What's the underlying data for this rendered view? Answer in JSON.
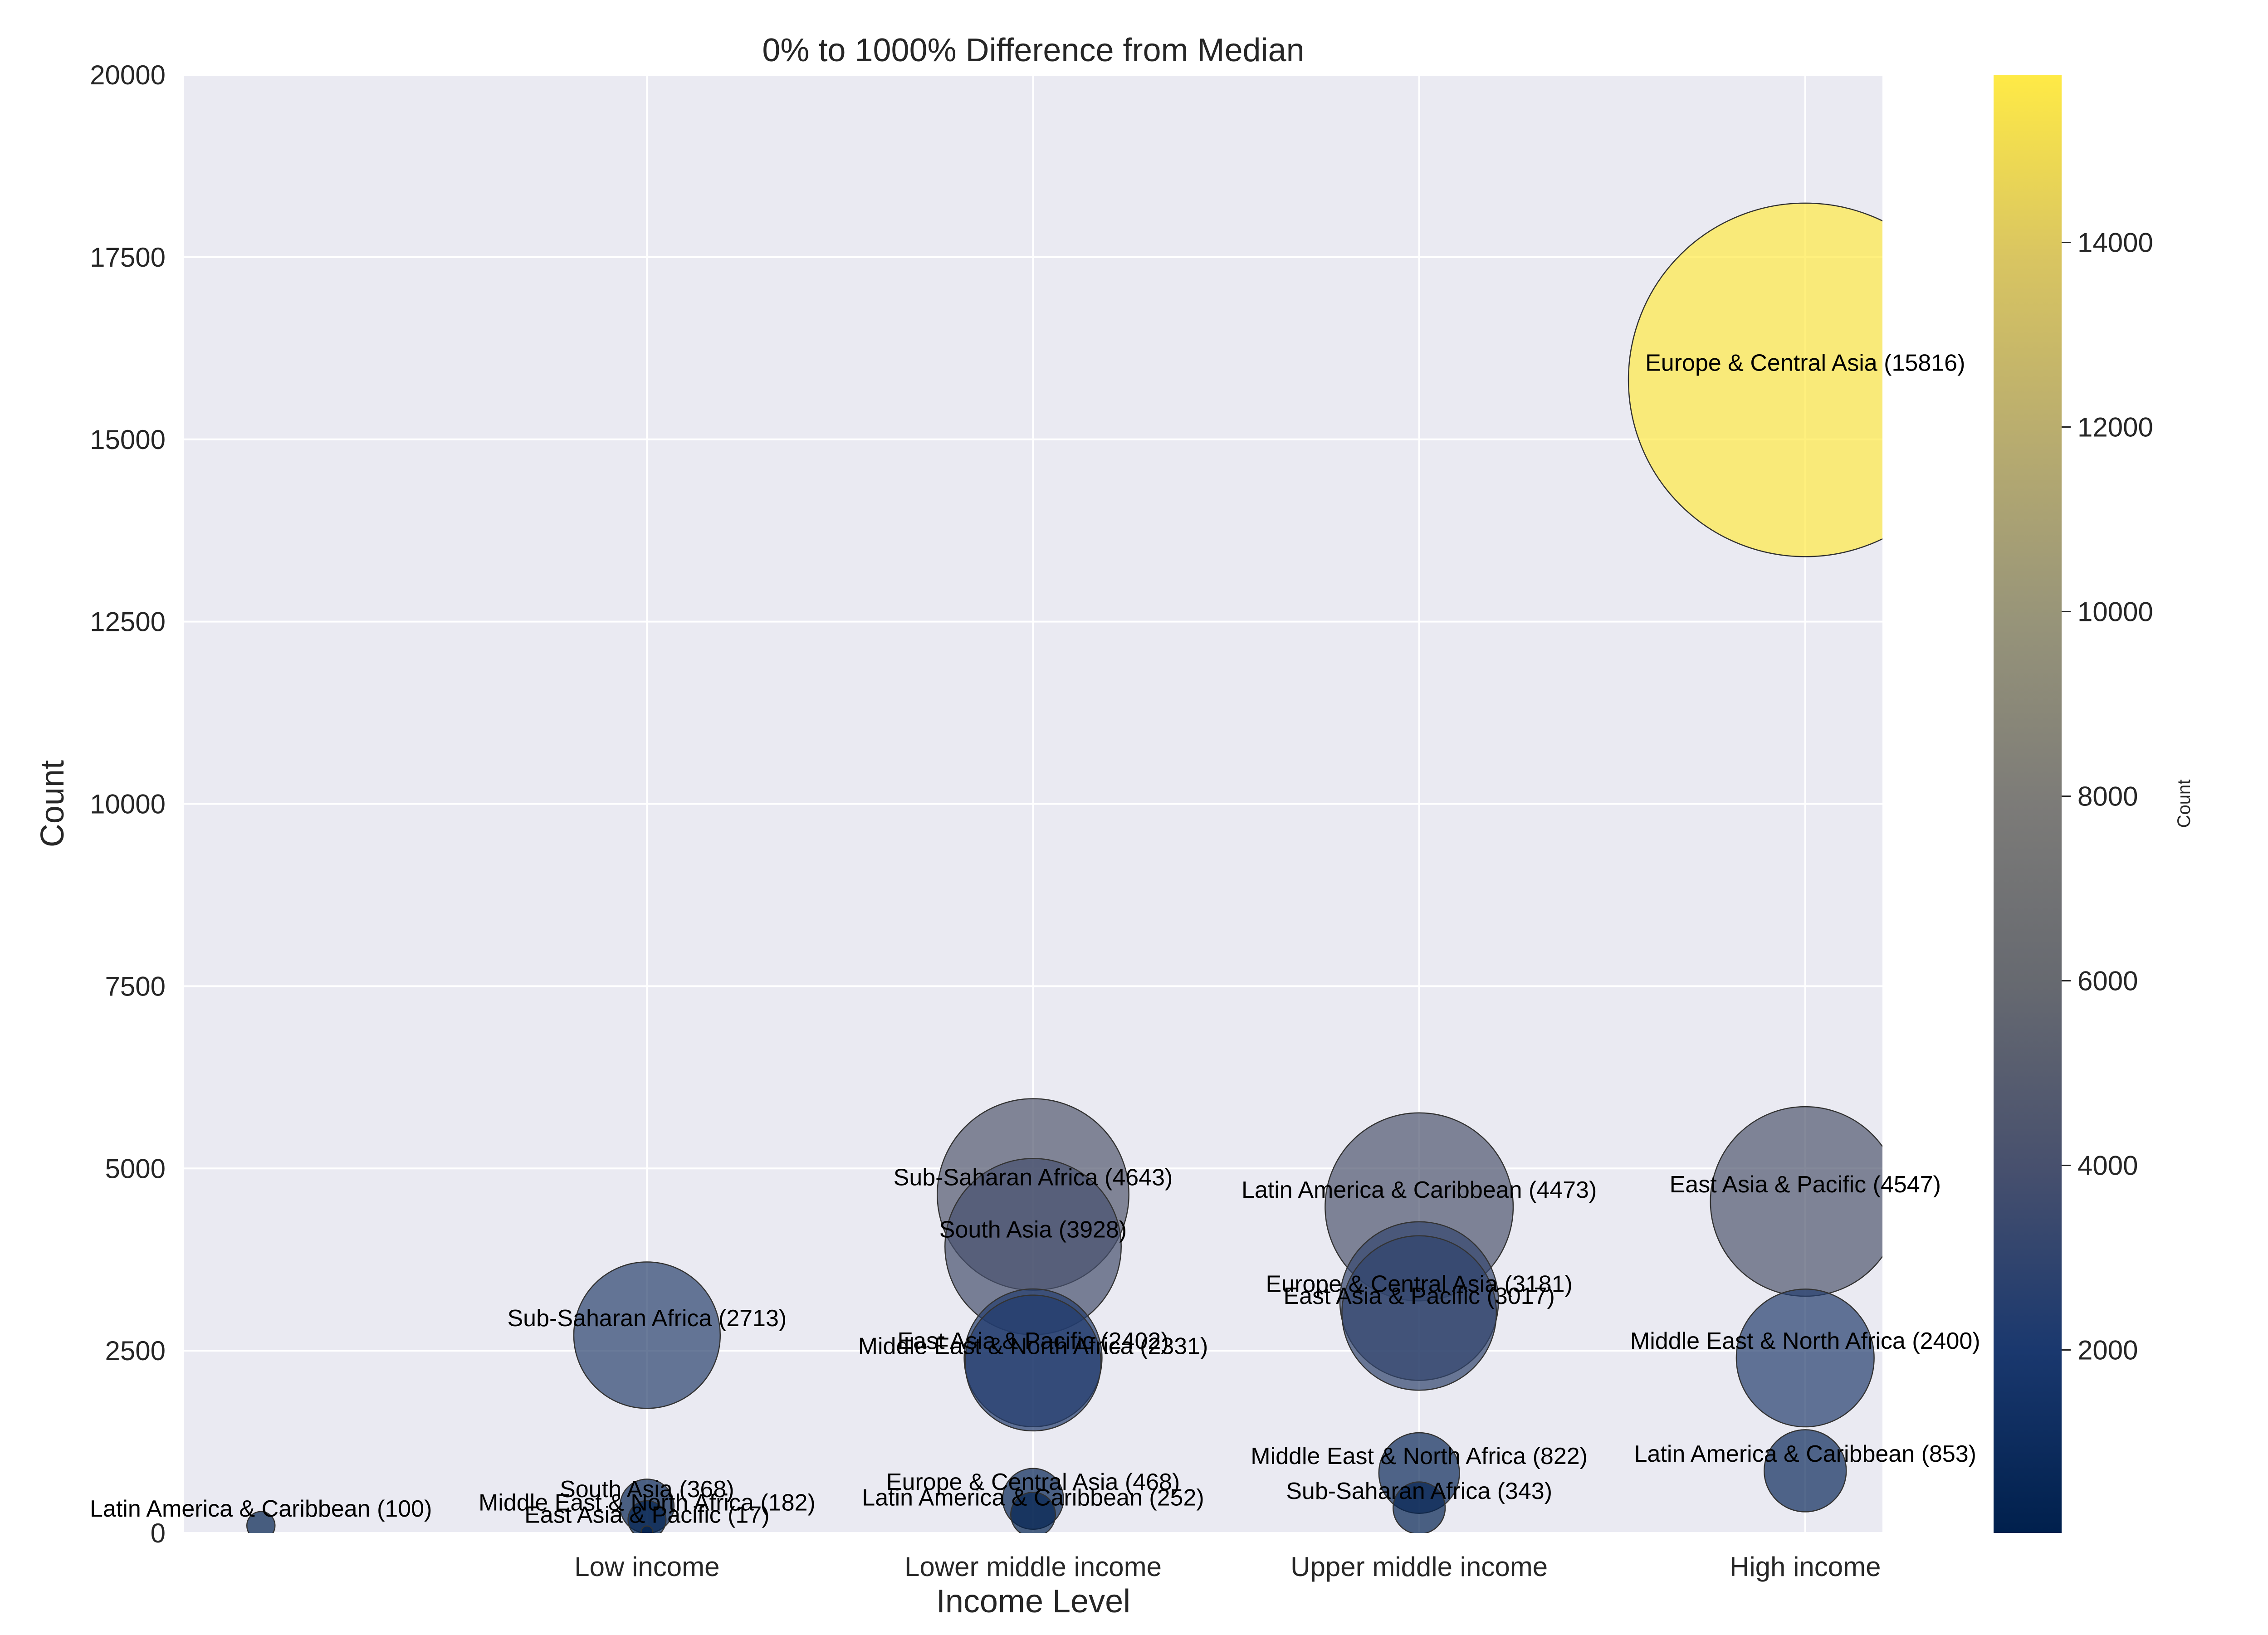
{
  "chart_data": {
    "type": "scatter",
    "title": "0% to 1000% Difference from Median",
    "xlabel": "Income Level",
    "ylabel": "Count",
    "categories": [
      "Low income",
      "Lower middle income",
      "Upper middle income",
      "High income"
    ],
    "ylim": [
      0,
      20000
    ],
    "yticks": [
      0,
      2500,
      5000,
      7500,
      10000,
      12500,
      15000,
      17500,
      20000
    ],
    "grid": true,
    "colorbar": {
      "label": "Count",
      "colormap": "cividis",
      "range": [
        17,
        15816
      ],
      "ticks": [
        2000,
        4000,
        6000,
        8000,
        10000,
        12000,
        14000
      ]
    },
    "points": [
      {
        "category": "Low income",
        "region": "Sub-Saharan Africa",
        "count": 2713,
        "label": "Sub-Saharan Africa (2713)"
      },
      {
        "category": "Low income",
        "region": "South Asia",
        "count": 368,
        "label": "South Asia (368)"
      },
      {
        "category": "Low income",
        "region": "Middle East & North Africa",
        "count": 182,
        "label": "Middle East & North Africa (182)"
      },
      {
        "category": "Low income",
        "region": "East Asia & Pacific",
        "count": 17,
        "label": "East Asia & Pacific (17)"
      },
      {
        "category": "Low income",
        "region": "Latin America & Caribbean",
        "count": 100,
        "label": "Latin America & Caribbean (100)",
        "x_offset": -1
      },
      {
        "category": "Lower middle income",
        "region": "Sub-Saharan Africa",
        "count": 4643,
        "label": "Sub-Saharan Africa (4643)"
      },
      {
        "category": "Lower middle income",
        "region": "South Asia",
        "count": 3928,
        "label": "South Asia (3928)"
      },
      {
        "category": "Lower middle income",
        "region": "East Asia & Pacific",
        "count": 2402,
        "label": "East Asia & Pacific (2402)"
      },
      {
        "category": "Lower middle income",
        "region": "Middle East & North Africa",
        "count": 2331,
        "label": "Middle East & North Africa (2331)"
      },
      {
        "category": "Lower middle income",
        "region": "Europe & Central Asia",
        "count": 468,
        "label": "Europe & Central Asia (468)"
      },
      {
        "category": "Lower middle income",
        "region": "Latin America & Caribbean",
        "count": 252,
        "label": "Latin America & Caribbean (252)"
      },
      {
        "category": "Upper middle income",
        "region": "Latin America & Caribbean",
        "count": 4473,
        "label": "Latin America & Caribbean (4473)"
      },
      {
        "category": "Upper middle income",
        "region": "Europe & Central Asia",
        "count": 3181,
        "label": "Europe & Central Asia (3181)"
      },
      {
        "category": "Upper middle income",
        "region": "East Asia & Pacific",
        "count": 3017,
        "label": "East Asia & Pacific (3017)"
      },
      {
        "category": "Upper middle income",
        "region": "Middle East & North Africa",
        "count": 822,
        "label": "Middle East & North Africa (822)"
      },
      {
        "category": "Upper middle income",
        "region": "Sub-Saharan Africa",
        "count": 343,
        "label": "Sub-Saharan Africa (343)"
      },
      {
        "category": "High income",
        "region": "Europe & Central Asia",
        "count": 15816,
        "label": "Europe & Central Asia (15816)"
      },
      {
        "category": "High income",
        "region": "East Asia & Pacific",
        "count": 4547,
        "label": "East Asia & Pacific (4547)"
      },
      {
        "category": "High income",
        "region": "Middle East & North Africa",
        "count": 2400,
        "label": "Middle East & North Africa (2400)"
      },
      {
        "category": "High income",
        "region": "Latin America & Caribbean",
        "count": 853,
        "label": "Latin America & Caribbean (853)"
      }
    ]
  }
}
